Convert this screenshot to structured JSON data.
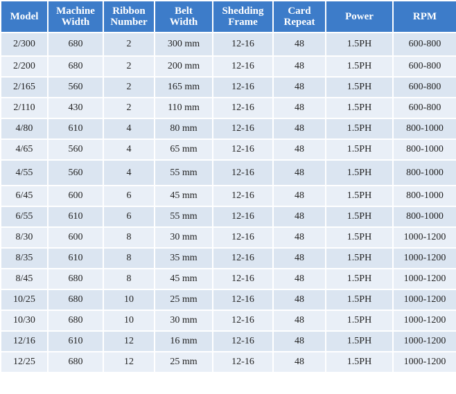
{
  "table": {
    "header": [
      "Model",
      "Machine Width",
      "Ribbon Number",
      "Belt Width",
      "Shedding Frame",
      "Card Repeat",
      "Power",
      "RPM"
    ],
    "rows": [
      [
        "2/300",
        "680",
        "2",
        "300 mm",
        "12-16",
        "48",
        "1.5PH",
        "600-800"
      ],
      [
        "2/200",
        "680",
        "2",
        "200 mm",
        "12-16",
        "48",
        "1.5PH",
        "600-800"
      ],
      [
        "2/165",
        "560",
        "2",
        "165 mm",
        "12-16",
        "48",
        "1.5PH",
        "600-800"
      ],
      [
        "2/110",
        "430",
        "2",
        "110 mm",
        "12-16",
        "48",
        "1.5PH",
        "600-800"
      ],
      [
        "4/80",
        "610",
        "4",
        "80 mm",
        "12-16",
        "48",
        "1.5PH",
        "800-1000"
      ],
      [
        "4/65",
        "560",
        "4",
        "65 mm",
        "12-16",
        "48",
        "1.5PH",
        "800-1000"
      ],
      [
        "4/55",
        "560",
        "4",
        "55 mm",
        "12-16",
        "48",
        "1.5PH",
        "800-1000"
      ],
      [
        "6/45",
        "600",
        "6",
        "45 mm",
        "12-16",
        "48",
        "1.5PH",
        "800-1000"
      ],
      [
        "6/55",
        "610",
        "6",
        "55 mm",
        "12-16",
        "48",
        "1.5PH",
        "800-1000"
      ],
      [
        "8/30",
        "600",
        "8",
        "30 mm",
        "12-16",
        "48",
        "1.5PH",
        "1000-1200"
      ],
      [
        "8/35",
        "610",
        "8",
        "35 mm",
        "12-16",
        "48",
        "1.5PH",
        "1000-1200"
      ],
      [
        "8/45",
        "680",
        "8",
        "45 mm",
        "12-16",
        "48",
        "1.5PH",
        "1000-1200"
      ],
      [
        "10/25",
        "680",
        "10",
        "25 mm",
        "12-16",
        "48",
        "1.5PH",
        "1000-1200"
      ],
      [
        "10/30",
        "680",
        "10",
        "30 mm",
        "12-16",
        "48",
        "1.5PH",
        "1000-1200"
      ],
      [
        "12/16",
        "610",
        "12",
        "16 mm",
        "12-16",
        "48",
        "1.5PH",
        "1000-1200"
      ],
      [
        "12/25",
        "680",
        "12",
        "25 mm",
        "12-16",
        "48",
        "1.5PH",
        "1000-1200"
      ]
    ]
  }
}
